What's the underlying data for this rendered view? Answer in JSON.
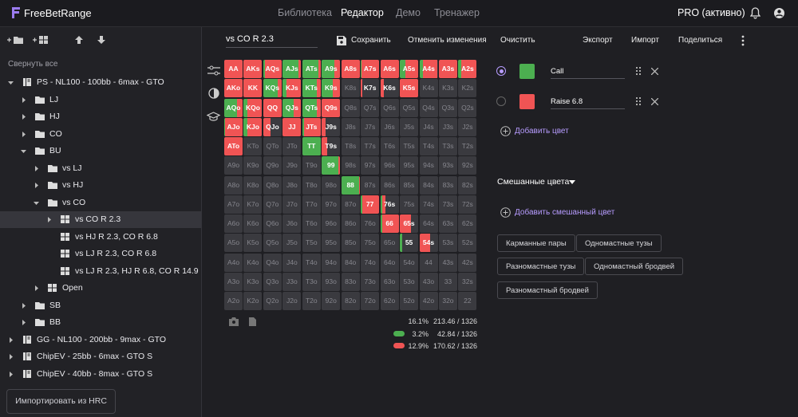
{
  "header": {
    "logo": "FreeBetRange",
    "nav": [
      "Библиотека",
      "Редактор",
      "Демо",
      "Тренажер"
    ],
    "active_nav": 1,
    "status": "PRO (активно)"
  },
  "sidebar": {
    "collapse": "Свернуть все",
    "import_button": "Импортировать из HRC",
    "tree": [
      {
        "label": "PS - NL100 - 100bb - 6max - GTO",
        "icon": "book",
        "arrow": "open",
        "children": [
          {
            "label": "LJ",
            "icon": "folder",
            "arrow": "closed"
          },
          {
            "label": "HJ",
            "icon": "folder",
            "arrow": "closed"
          },
          {
            "label": "CO",
            "icon": "folder",
            "arrow": "closed"
          },
          {
            "label": "BU",
            "icon": "folder",
            "arrow": "open",
            "children": [
              {
                "label": "vs LJ",
                "icon": "folder",
                "arrow": "closed"
              },
              {
                "label": "vs HJ",
                "icon": "folder",
                "arrow": "closed"
              },
              {
                "label": "vs CO",
                "icon": "folder",
                "arrow": "open",
                "children": [
                  {
                    "label": "vs CO R 2.3",
                    "icon": "grid",
                    "arrow": "closed",
                    "selected": true
                  },
                  {
                    "label": "vs HJ R 2.3, CO R 6.8",
                    "icon": "grid"
                  },
                  {
                    "label": "vs LJ R 2.3, CO R 6.8",
                    "icon": "grid"
                  },
                  {
                    "label": "vs LJ R 2.3, HJ R 6.8, CO R 14.9",
                    "icon": "grid"
                  }
                ]
              },
              {
                "label": "Open",
                "icon": "grid",
                "arrow": "closed"
              }
            ]
          },
          {
            "label": "SB",
            "icon": "folder",
            "arrow": "closed"
          },
          {
            "label": "BB",
            "icon": "folder",
            "arrow": "closed"
          }
        ]
      },
      {
        "label": "GG - NL100 - 200bb - 9max - GTO",
        "icon": "book",
        "arrow": "closed"
      },
      {
        "label": "ChipEV - 25bb - 6max - GTO S",
        "icon": "book",
        "arrow": "closed"
      },
      {
        "label": "ChipEV - 40bb - 8max - GTO S",
        "icon": "book",
        "arrow": "closed"
      }
    ]
  },
  "toolbar": {
    "range_name": "vs CO R 2.3",
    "save": "Сохранить",
    "undo": "Отменить изменения",
    "clear": "Очистить",
    "export": "Экспорт",
    "import": "Импорт",
    "share": "Поделиться"
  },
  "matrix": {
    "hands": [
      [
        "AA",
        "AKs",
        "AQs",
        "AJs",
        "ATs",
        "A9s",
        "A8s",
        "A7s",
        "A6s",
        "A5s",
        "A4s",
        "A3s",
        "A2s"
      ],
      [
        "AKo",
        "KK",
        "KQs",
        "KJs",
        "KTs",
        "K9s",
        "K8s",
        "K7s",
        "K6s",
        "K5s",
        "K4s",
        "K3s",
        "K2s"
      ],
      [
        "AQo",
        "KQo",
        "QQ",
        "QJs",
        "QTs",
        "Q9s",
        "Q8s",
        "Q7s",
        "Q6s",
        "Q5s",
        "Q4s",
        "Q3s",
        "Q2s"
      ],
      [
        "AJo",
        "KJo",
        "QJo",
        "JJ",
        "JTs",
        "J9s",
        "J8s",
        "J7s",
        "J6s",
        "J5s",
        "J4s",
        "J3s",
        "J2s"
      ],
      [
        "ATo",
        "KTo",
        "QTo",
        "JTo",
        "TT",
        "T9s",
        "T8s",
        "T7s",
        "T6s",
        "T5s",
        "T4s",
        "T3s",
        "T2s"
      ],
      [
        "A9o",
        "K9o",
        "Q9o",
        "J9o",
        "T9o",
        "99",
        "98s",
        "97s",
        "96s",
        "95s",
        "94s",
        "93s",
        "92s"
      ],
      [
        "A8o",
        "K8o",
        "Q8o",
        "J8o",
        "T8o",
        "98o",
        "88",
        "87s",
        "86s",
        "85s",
        "84s",
        "83s",
        "82s"
      ],
      [
        "A7o",
        "K7o",
        "Q7o",
        "J7o",
        "T7o",
        "97o",
        "87o",
        "77",
        "76s",
        "75s",
        "74s",
        "73s",
        "72s"
      ],
      [
        "A6o",
        "K6o",
        "Q6o",
        "J6o",
        "T6o",
        "96o",
        "86o",
        "76o",
        "66",
        "65s",
        "64s",
        "63s",
        "62s"
      ],
      [
        "A5o",
        "K5o",
        "Q5o",
        "J5o",
        "T5o",
        "95o",
        "85o",
        "75o",
        "65o",
        "55",
        "54s",
        "53s",
        "52s"
      ],
      [
        "A4o",
        "K4o",
        "Q4o",
        "J4o",
        "T4o",
        "94o",
        "84o",
        "74o",
        "64o",
        "54o",
        "44",
        "43s",
        "42s"
      ],
      [
        "A3o",
        "K3o",
        "Q3o",
        "J3o",
        "T3o",
        "93o",
        "83o",
        "73o",
        "63o",
        "53o",
        "43o",
        "33",
        "32s"
      ],
      [
        "A2o",
        "K2o",
        "Q2o",
        "J2o",
        "T2o",
        "92o",
        "82o",
        "72o",
        "62o",
        "52o",
        "42o",
        "32o",
        "22"
      ]
    ],
    "call": [
      [
        0,
        0,
        10,
        85,
        90,
        70,
        0,
        5,
        0,
        30,
        20,
        0,
        15
      ],
      [
        0,
        0,
        80,
        20,
        80,
        60,
        0,
        0,
        0,
        0,
        0,
        0,
        0
      ],
      [
        70,
        20,
        0,
        60,
        80,
        0,
        0,
        0,
        0,
        0,
        0,
        0,
        0
      ],
      [
        5,
        20,
        0,
        0,
        10,
        0,
        0,
        0,
        0,
        0,
        0,
        0,
        0
      ],
      [
        0,
        0,
        0,
        0,
        100,
        0,
        0,
        0,
        0,
        0,
        0,
        0,
        0
      ],
      [
        0,
        0,
        0,
        0,
        0,
        90,
        0,
        0,
        0,
        0,
        0,
        0,
        0
      ],
      [
        0,
        0,
        0,
        0,
        0,
        0,
        95,
        0,
        0,
        0,
        0,
        0,
        0
      ],
      [
        0,
        0,
        0,
        0,
        0,
        0,
        0,
        10,
        10,
        0,
        0,
        0,
        0
      ],
      [
        0,
        0,
        0,
        0,
        0,
        0,
        0,
        0,
        10,
        0,
        0,
        0,
        0
      ],
      [
        0,
        0,
        0,
        0,
        0,
        0,
        0,
        0,
        0,
        15,
        0,
        0,
        0
      ],
      [
        0,
        0,
        0,
        0,
        0,
        0,
        0,
        0,
        0,
        0,
        0,
        0,
        0
      ],
      [
        0,
        0,
        0,
        0,
        0,
        0,
        0,
        0,
        0,
        0,
        0,
        0,
        0
      ],
      [
        0,
        0,
        0,
        0,
        0,
        0,
        0,
        0,
        0,
        0,
        0,
        0,
        0
      ]
    ],
    "raise": [
      [
        100,
        100,
        90,
        15,
        10,
        30,
        100,
        95,
        100,
        70,
        80,
        100,
        85
      ],
      [
        100,
        100,
        20,
        80,
        20,
        40,
        0,
        10,
        20,
        100,
        0,
        0,
        0
      ],
      [
        30,
        80,
        100,
        40,
        20,
        100,
        0,
        0,
        0,
        0,
        0,
        0,
        0
      ],
      [
        95,
        80,
        40,
        100,
        90,
        20,
        0,
        0,
        0,
        0,
        0,
        0,
        0
      ],
      [
        100,
        0,
        0,
        0,
        0,
        30,
        0,
        0,
        0,
        0,
        0,
        0,
        0
      ],
      [
        0,
        0,
        0,
        0,
        0,
        10,
        0,
        0,
        0,
        0,
        0,
        0,
        0
      ],
      [
        0,
        0,
        0,
        0,
        0,
        0,
        5,
        0,
        0,
        0,
        0,
        0,
        0
      ],
      [
        0,
        0,
        0,
        0,
        0,
        0,
        0,
        90,
        20,
        0,
        0,
        0,
        0
      ],
      [
        0,
        0,
        0,
        0,
        0,
        0,
        0,
        0,
        90,
        60,
        0,
        0,
        0
      ],
      [
        0,
        0,
        0,
        0,
        0,
        0,
        0,
        0,
        0,
        0,
        60,
        0,
        0
      ],
      [
        0,
        0,
        0,
        0,
        0,
        0,
        0,
        0,
        0,
        0,
        0,
        0,
        0
      ],
      [
        0,
        0,
        0,
        0,
        0,
        0,
        0,
        0,
        0,
        0,
        0,
        0,
        0
      ],
      [
        0,
        0,
        0,
        0,
        0,
        0,
        0,
        0,
        0,
        0,
        0,
        0,
        0
      ]
    ]
  },
  "stats": [
    {
      "percent": "16.1%",
      "combos": "213.46 / 1326"
    },
    {
      "percent": "3.2%",
      "combos": "42.84 / 1326"
    },
    {
      "percent": "12.9%",
      "combos": "170.62 / 1326"
    }
  ],
  "panel": {
    "colors": [
      {
        "name": "Call",
        "color": "#4caf50",
        "selected": true
      },
      {
        "name": "Raise 6.8",
        "color": "#f05454"
      }
    ],
    "add_color": "Добавить цвет",
    "mixed_title": "Смешанные цвета",
    "add_mixed": "Добавить смешанный цвет",
    "chips": [
      "Карманные пары",
      "Одномастные тузы",
      "Разномастные тузы",
      "Одномастный бродвей",
      "Разномастный бродвей"
    ]
  }
}
